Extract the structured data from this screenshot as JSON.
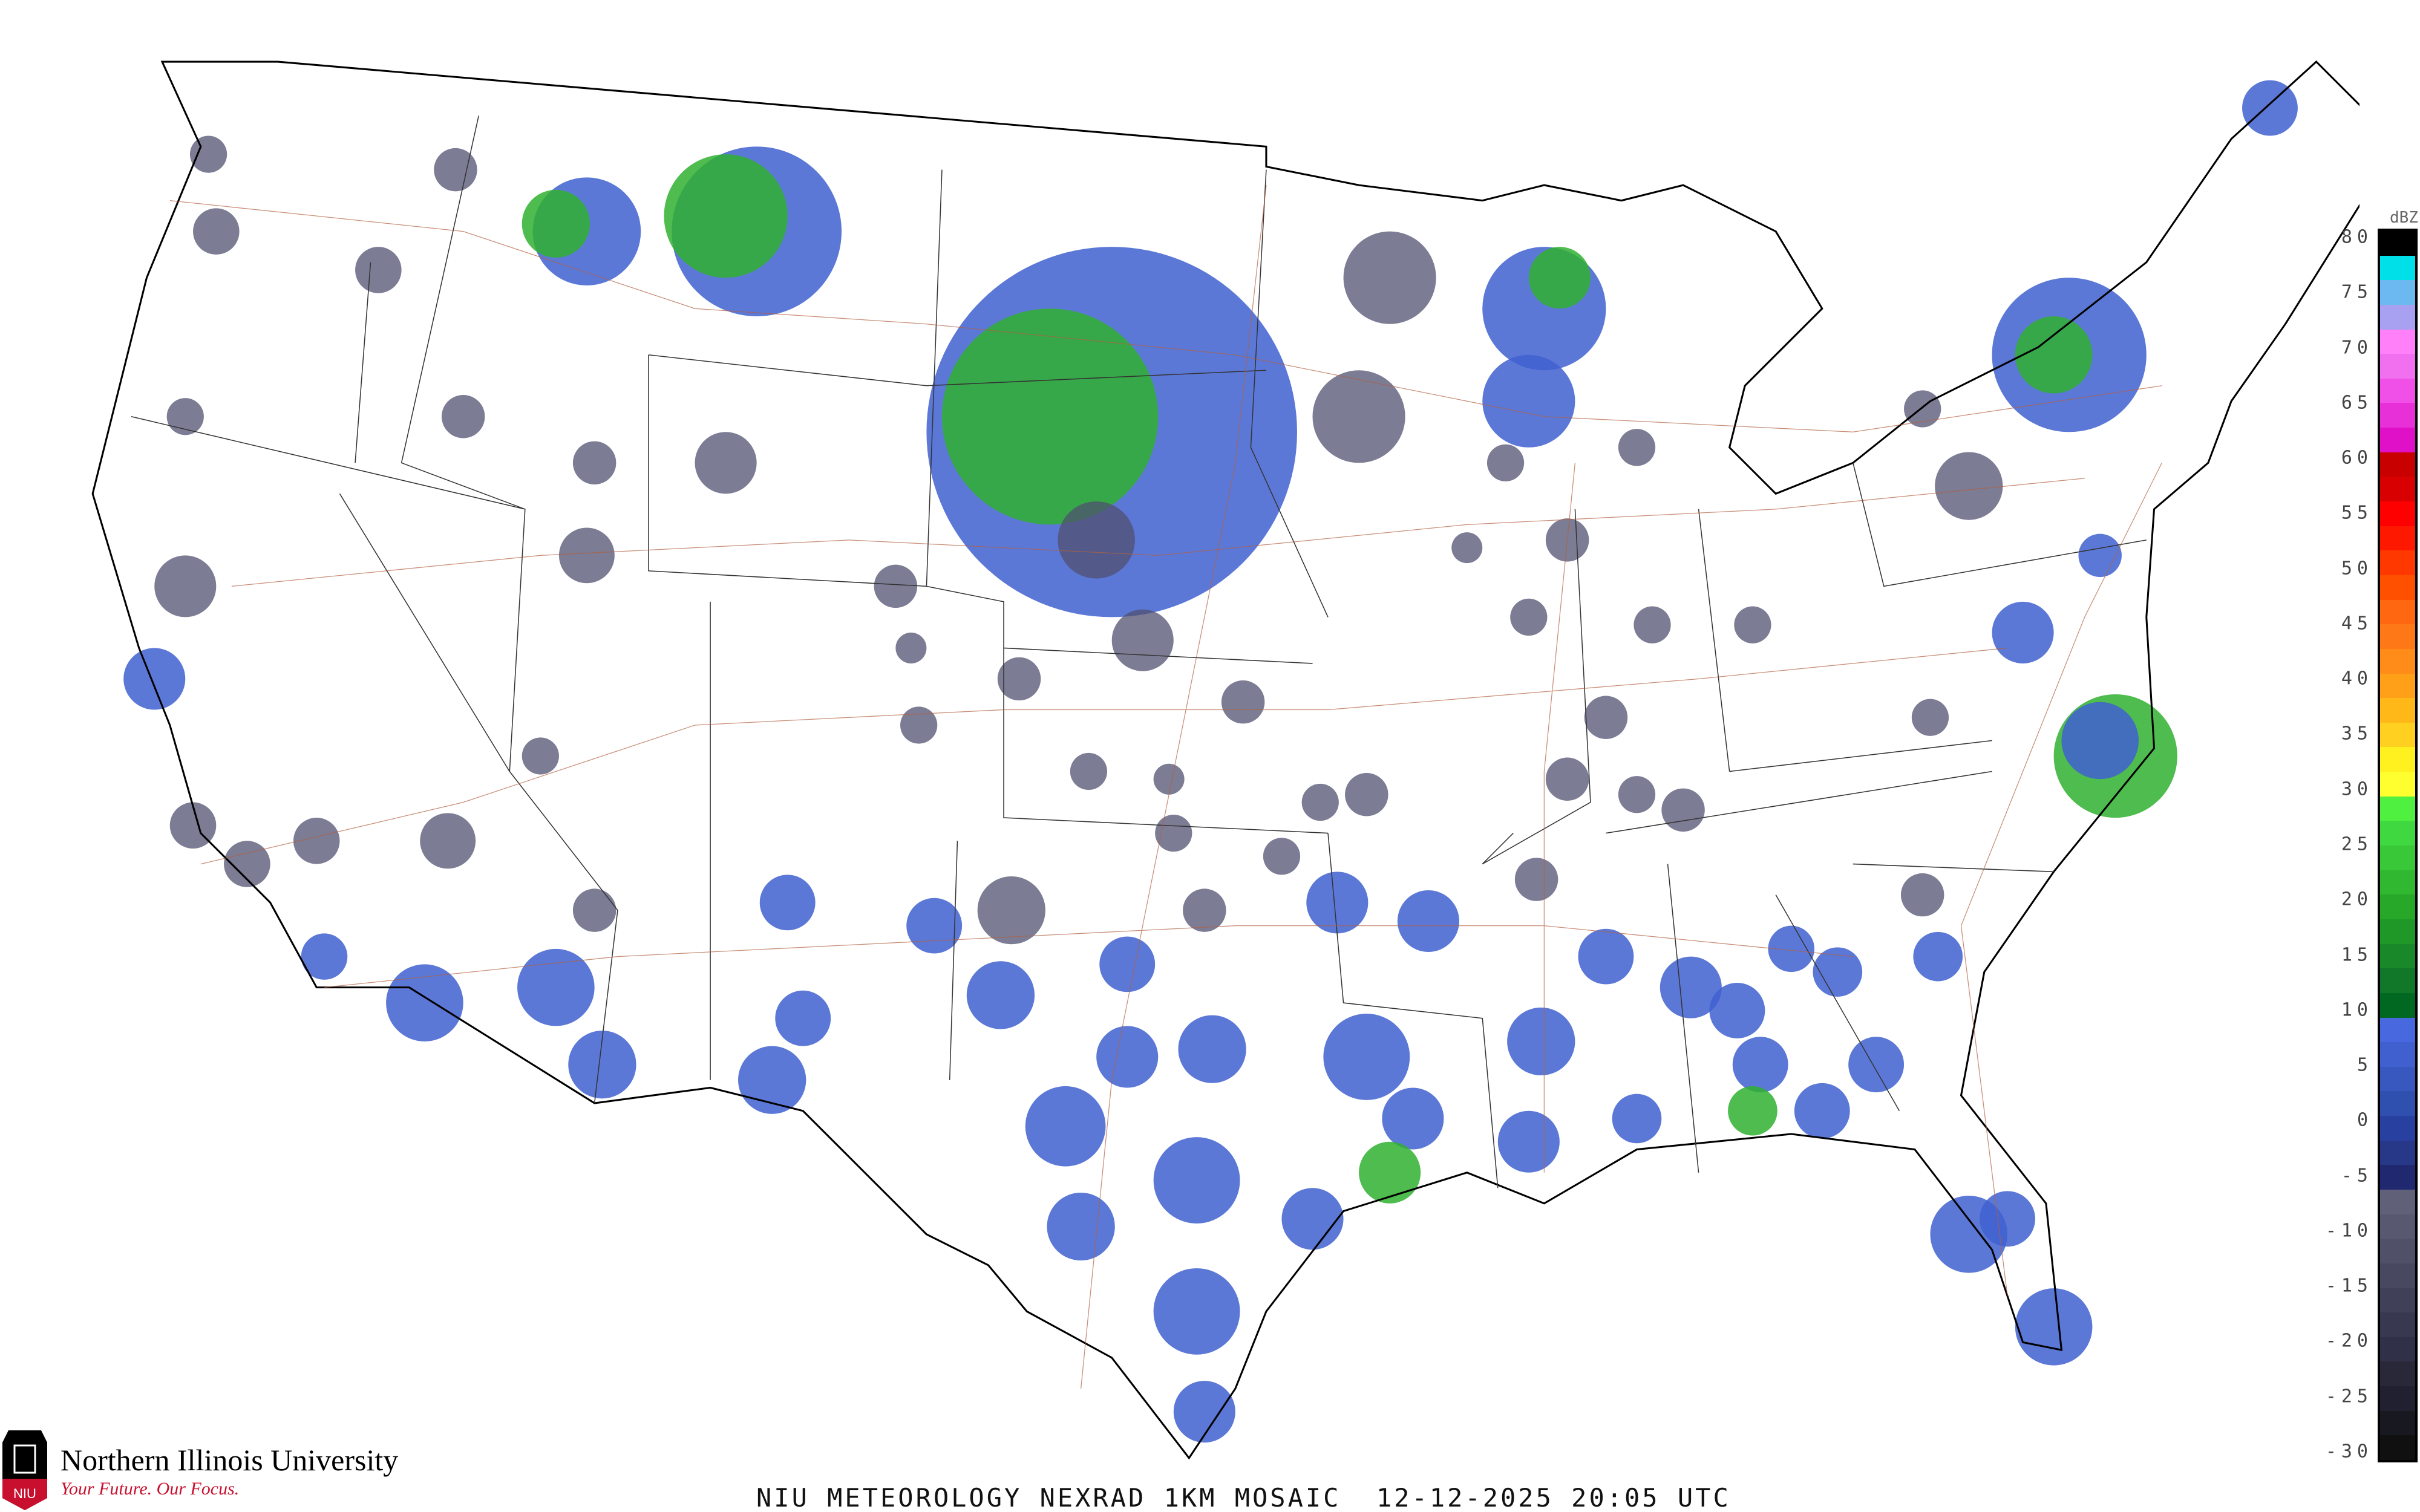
{
  "title": "NIU METEOROLOGY NEXRAD 1KM MOSAIC  12-12-2025 20:05 UTC",
  "logo": {
    "name": "Northern Illinois University",
    "tagline": "Your Future. Our Focus.",
    "mark_text": "NIU"
  },
  "colorbar": {
    "unit": "dBZ",
    "ticks": [
      "80",
      "75",
      "70",
      "65",
      "60",
      "55",
      "50",
      "45",
      "40",
      "35",
      "30",
      "25",
      "20",
      "15",
      "10",
      "5",
      "0",
      "-5",
      "-10",
      "-15",
      "-20",
      "-25",
      "-30"
    ],
    "colors": [
      "#000000",
      "#00e0e8",
      "#6cb8f0",
      "#a8a0f0",
      "#ff80f8",
      "#f070f0",
      "#f050e8",
      "#e830d8",
      "#e010c8",
      "#c80000",
      "#d80000",
      "#ff0000",
      "#ff1800",
      "#ff3800",
      "#ff5000",
      "#ff6810",
      "#ff7818",
      "#ff8c18",
      "#ffa018",
      "#ffb818",
      "#ffd020",
      "#fff020",
      "#ffff30",
      "#50f040",
      "#40d840",
      "#38c838",
      "#30b830",
      "#28a828",
      "#209828",
      "#188828",
      "#107828",
      "#006820",
      "#4868e0",
      "#4060d0",
      "#3858c0",
      "#3050b0",
      "#2840a0",
      "#283888",
      "#202870",
      "#606078",
      "#585870",
      "#505068",
      "#484860",
      "#404058",
      "#383850",
      "#303048",
      "#282838",
      "#202030",
      "#181820",
      "#101010"
    ],
    "accent_colors": {
      "snow_light": "#4060d0",
      "clear_air": "#505070",
      "moderate": "#30b030"
    }
  }
}
